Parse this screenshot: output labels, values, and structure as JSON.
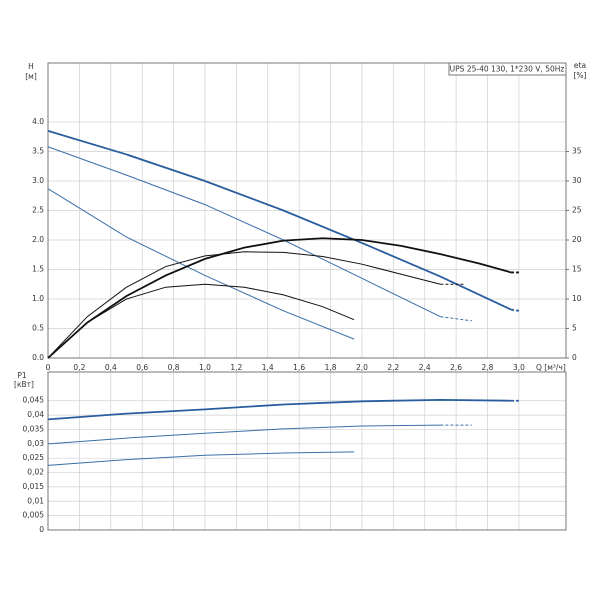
{
  "chart_data": [
    {
      "type": "line",
      "title": "UPS 25-40 130, 1*230 V, 50Hz",
      "ylabel": "H",
      "yunit": "[м]",
      "y2label": "eta",
      "y2unit": "[%]",
      "xlabel": "Q [м³/ч]",
      "xlim": [
        0,
        3.3
      ],
      "ylim": [
        0,
        5
      ],
      "y2lim": [
        0,
        50
      ],
      "grid": true,
      "xticks": [
        0,
        {
          "value": 0.2,
          "label": "0,2"
        },
        {
          "value": 0.4,
          "label": "0,4"
        },
        {
          "value": 0.6,
          "label": "0,6"
        },
        {
          "value": 0.8,
          "label": "0,8"
        },
        {
          "value": 1,
          "label": "1,0"
        },
        {
          "value": 1.2,
          "label": "1,2"
        },
        {
          "value": 1.4,
          "label": "1,4"
        },
        {
          "value": 1.6,
          "label": "1,6"
        },
        {
          "value": 1.8,
          "label": "1,8"
        },
        {
          "value": 2,
          "label": "2,0"
        },
        {
          "value": 2.2,
          "label": "2,2"
        },
        {
          "value": 2.4,
          "label": "2,4"
        },
        {
          "value": 2.6,
          "label": "2,6"
        },
        {
          "value": 2.8,
          "label": "2,8"
        },
        {
          "value": 3,
          "label": "3,0"
        }
      ],
      "yticks": [
        {
          "value": 0,
          "label": "0.0"
        },
        0.5,
        {
          "value": 1,
          "label": "1.0"
        },
        1.5,
        {
          "value": 2,
          "label": "2.0"
        },
        2.5,
        {
          "value": 3,
          "label": "3.0"
        },
        3.5,
        {
          "value": 4,
          "label": "4.0"
        }
      ],
      "y2ticks": [
        0,
        5,
        10,
        15,
        20,
        25,
        30,
        35
      ],
      "series": [
        {
          "color": "#2a5d9f",
          "bold": true,
          "x": [
            0,
            0.5,
            1,
            1.5,
            2,
            2.5,
            2.95
          ],
          "values": [
            3.85,
            3.45,
            3.0,
            2.5,
            1.95,
            1.38,
            0.82
          ]
        },
        {
          "color": "#2a5d9f",
          "bold": true,
          "dash": true,
          "x": [
            2.95,
            3.0
          ],
          "values": [
            0.82,
            0.8
          ]
        },
        {
          "color": "#3a6ea8",
          "x": [
            0,
            0.5,
            1,
            1.5,
            2,
            2.5
          ],
          "values": [
            3.58,
            3.1,
            2.6,
            2.0,
            1.35,
            0.7
          ]
        },
        {
          "color": "#3a6ea8",
          "dash": true,
          "x": [
            2.5,
            2.7
          ],
          "values": [
            0.7,
            0.63
          ]
        },
        {
          "color": "#3a6ea8",
          "x": [
            0,
            0.5,
            1,
            1.5,
            1.95
          ],
          "values": [
            2.87,
            2.05,
            1.4,
            0.8,
            0.32
          ]
        },
        {
          "color": "#111111",
          "bold": true,
          "axis": "y2",
          "x": [
            0,
            0.25,
            0.5,
            0.75,
            1,
            1.25,
            1.5,
            1.75,
            2,
            2.25,
            2.5,
            2.75,
            2.95
          ],
          "values": [
            0,
            6,
            10.5,
            14,
            16.8,
            18.7,
            19.9,
            20.3,
            20,
            19,
            17.6,
            16,
            14.5
          ]
        },
        {
          "color": "#111111",
          "bold": true,
          "dash": true,
          "axis": "y2",
          "x": [
            2.95,
            3.0
          ],
          "values": [
            14.5,
            14.5
          ]
        },
        {
          "color": "#111111",
          "axis": "y2",
          "x": [
            0,
            0.25,
            0.5,
            0.75,
            1,
            1.25,
            1.5,
            1.75,
            2,
            2.25,
            2.5
          ],
          "values": [
            0,
            7,
            12,
            15.5,
            17.3,
            18,
            17.9,
            17.2,
            15.9,
            14.2,
            12.5
          ]
        },
        {
          "color": "#111111",
          "dash": true,
          "axis": "y2",
          "x": [
            2.5,
            2.65
          ],
          "values": [
            12.5,
            12.5
          ]
        },
        {
          "color": "#111111",
          "axis": "y2",
          "x": [
            0,
            0.25,
            0.5,
            0.75,
            1,
            1.25,
            1.5,
            1.75,
            1.95
          ],
          "values": [
            0,
            6,
            10,
            12,
            12.5,
            12,
            10.7,
            8.7,
            6.5
          ]
        }
      ]
    },
    {
      "type": "line",
      "ylabel": "P1",
      "yunit": "[кВт]",
      "xlim": [
        0,
        3.3
      ],
      "ylim": [
        0,
        0.055
      ],
      "grid": true,
      "yticks": [
        0,
        {
          "value": 0.005,
          "label": "0,005"
        },
        {
          "value": 0.01,
          "label": "0,01"
        },
        {
          "value": 0.015,
          "label": "0,015"
        },
        {
          "value": 0.02,
          "label": "0,02"
        },
        {
          "value": 0.025,
          "label": "0,025"
        },
        {
          "value": 0.03,
          "label": "0,03"
        },
        {
          "value": 0.035,
          "label": "0,035"
        },
        {
          "value": 0.04,
          "label": "0,04"
        },
        {
          "value": 0.045,
          "label": "0,045"
        }
      ],
      "series": [
        {
          "color": "#2a5d9f",
          "bold": true,
          "x": [
            0,
            0.5,
            1,
            1.5,
            2,
            2.5,
            2.95
          ],
          "values": [
            0.0385,
            0.0405,
            0.042,
            0.0437,
            0.0448,
            0.0453,
            0.045
          ]
        },
        {
          "color": "#2a5d9f",
          "bold": true,
          "dash": true,
          "x": [
            2.95,
            3.0
          ],
          "values": [
            0.045,
            0.045
          ]
        },
        {
          "color": "#3a6ea8",
          "x": [
            0,
            0.5,
            1,
            1.5,
            2,
            2.5
          ],
          "values": [
            0.03,
            0.032,
            0.0337,
            0.0352,
            0.0362,
            0.0365
          ]
        },
        {
          "color": "#3a6ea8",
          "dash": true,
          "x": [
            2.5,
            2.7
          ],
          "values": [
            0.0365,
            0.0365
          ]
        },
        {
          "color": "#3a6ea8",
          "x": [
            0,
            0.5,
            1,
            1.5,
            1.95
          ],
          "values": [
            0.0225,
            0.0245,
            0.026,
            0.0268,
            0.0272
          ]
        }
      ]
    }
  ]
}
